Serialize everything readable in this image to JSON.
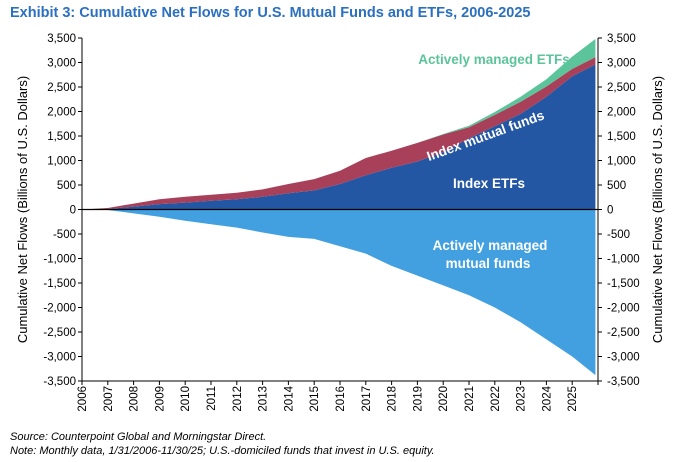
{
  "exhibit_title": "Exhibit 3: Cumulative Net Flows for U.S. Mutual Funds and ETFs, 2006-2025",
  "source_note": "Source: Counterpoint Global and Morningstar Direct.",
  "data_note": "Note: Monthly data, 1/31/2006-11/30/25; U.S.-domiciled funds that invest in U.S. equity.",
  "colors": {
    "index_etfs": "#2357a3",
    "index_mutual_funds": "#a8405a",
    "active_etfs": "#5cc49a",
    "active_mutual_funds": "#42a0e0",
    "title": "#2a6fc0"
  },
  "chart_data": {
    "type": "area",
    "stacked": true,
    "title": "Exhibit 3: Cumulative Net Flows for U.S. Mutual Funds and ETFs, 2006-2025",
    "ylabel_left": "Cumulative Net Flows (Billions of U.S. Dollars)",
    "ylabel_right": "Cumulative Net Flows (Billions of U.S. Dollars)",
    "xlabel": "",
    "ylim": [
      -3500,
      3500
    ],
    "yticks": [
      -3500,
      -3000,
      -2500,
      -2000,
      -1500,
      -1000,
      -500,
      0,
      500,
      1000,
      1500,
      2000,
      2500,
      3000,
      3500
    ],
    "ytick_labels": [
      "-3,500",
      "-3,000",
      "-2,500",
      "-2,000",
      "-1,500",
      "-1,000",
      "-500",
      "0",
      "500",
      "1,000",
      "1,500",
      "2,000",
      "2,500",
      "3,000",
      "3,500"
    ],
    "xlim": [
      2006,
      2026
    ],
    "xtick_labels": [
      "2006",
      "2007",
      "2008",
      "2009",
      "2010",
      "2011",
      "2012",
      "2013",
      "2014",
      "2015",
      "2016",
      "2017",
      "2018",
      "2019",
      "2020",
      "2021",
      "2022",
      "2023",
      "2024",
      "2025"
    ],
    "x": [
      2006,
      2007,
      2008,
      2009,
      2010,
      2011,
      2012,
      2013,
      2014,
      2015,
      2016,
      2017,
      2018,
      2019,
      2020,
      2021,
      2022,
      2023,
      2024,
      2025,
      2025.9
    ],
    "series": [
      {
        "name": "Index ETFs",
        "values": [
          0,
          10,
          60,
          110,
          140,
          180,
          210,
          260,
          330,
          390,
          520,
          700,
          850,
          980,
          1170,
          1450,
          1700,
          1950,
          2300,
          2720,
          2960
        ]
      },
      {
        "name": "Index mutual funds",
        "values": [
          0,
          20,
          60,
          100,
          120,
          120,
          130,
          150,
          190,
          230,
          270,
          350,
          350,
          380,
          360,
          230,
          230,
          250,
          210,
          150,
          150
        ]
      },
      {
        "name": "Actively managed ETFs",
        "values": [
          0,
          0,
          0,
          0,
          0,
          0,
          0,
          0,
          0,
          0,
          0,
          0,
          0,
          0,
          10,
          30,
          60,
          100,
          150,
          250,
          370
        ]
      },
      {
        "name": "Actively managed mutual funds",
        "values": [
          0,
          -10,
          -80,
          -150,
          -230,
          -300,
          -370,
          -470,
          -560,
          -600,
          -750,
          -900,
          -1150,
          -1350,
          -1550,
          -1750,
          -2000,
          -2300,
          -2650,
          -3000,
          -3380
        ]
      }
    ],
    "annotations": [
      {
        "text": "Actively managed ETFs",
        "series": "Actively managed ETFs"
      },
      {
        "text": "Index mutual funds",
        "series": "Index mutual funds"
      },
      {
        "text": "Index ETFs",
        "series": "Index ETFs"
      },
      {
        "text": "Actively managed",
        "series": "Actively managed mutual funds"
      },
      {
        "text": "mutual funds",
        "series": "Actively managed mutual funds"
      }
    ]
  }
}
